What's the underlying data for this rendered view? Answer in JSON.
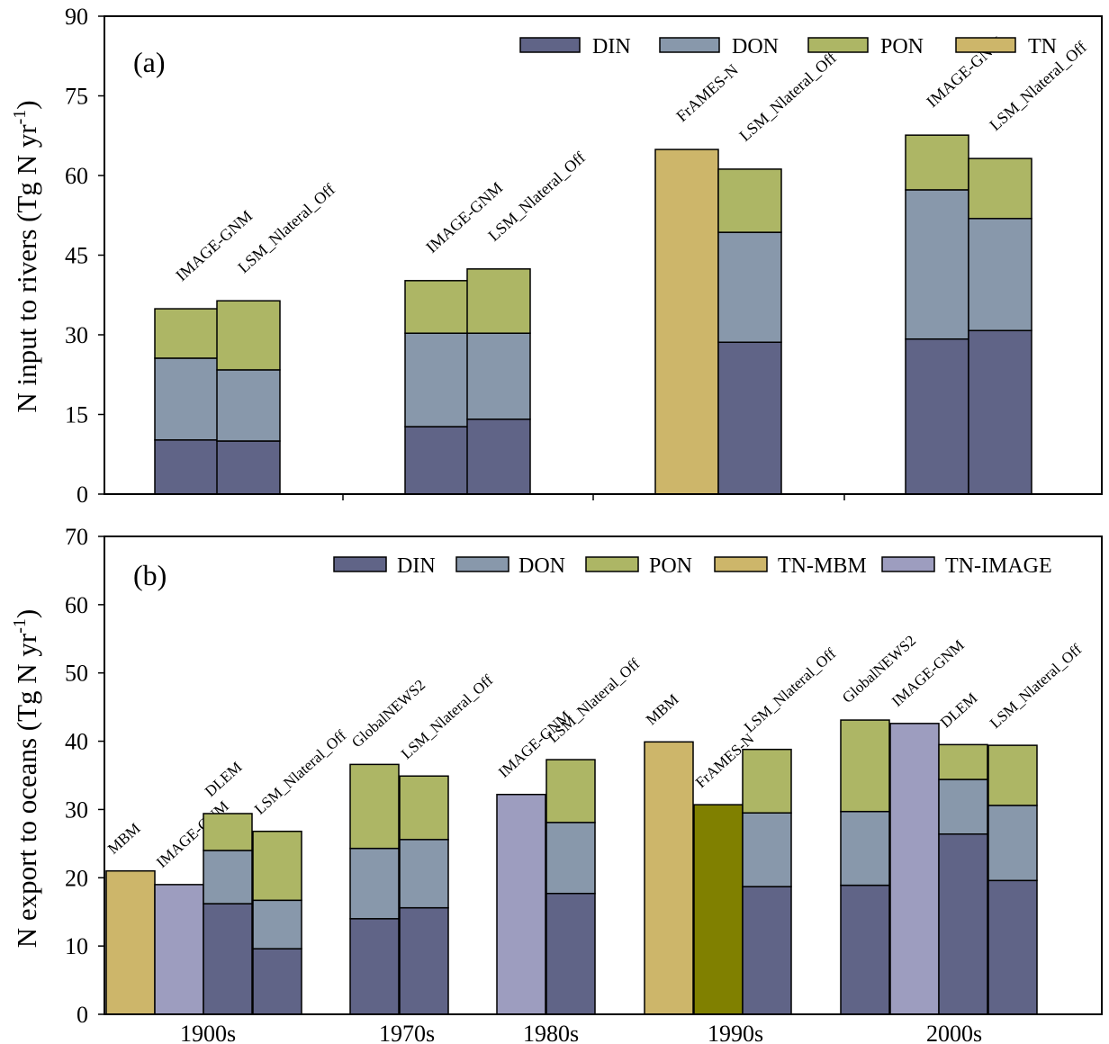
{
  "colors": {
    "DIN": "#606487",
    "DON": "#8898ab",
    "PON": "#adb665",
    "TN": "#cdb66a",
    "TN-MBM": "#cdb66a",
    "TN-IMAGE": "#9d9dbf",
    "TN-FrAMES": "#808000"
  },
  "chart_data": [
    {
      "type": "bar",
      "stacked": true,
      "panel_label": "(a)",
      "ylabel": "N input to rivers (Tg N yr-1)",
      "ylim": [
        0,
        90
      ],
      "yticks": [
        0,
        15,
        30,
        45,
        60,
        75,
        90
      ],
      "legend": [
        "DIN",
        "DON",
        "PON",
        "TN"
      ],
      "legend_position": "top-right",
      "categories": [
        "1900s",
        "1970s",
        "1990s",
        "2000s"
      ],
      "show_category_labels": false,
      "bars": [
        {
          "category": "1900s",
          "model": "IMAGE-GNM",
          "segments": {
            "DIN": 10.2,
            "DON": 15.4,
            "PON": 9.3
          }
        },
        {
          "category": "1900s",
          "model": "LSM_Nlateral_Off",
          "segments": {
            "DIN": 10.0,
            "DON": 13.4,
            "PON": 13.0
          }
        },
        {
          "category": "1970s",
          "model": "IMAGE-GNM",
          "segments": {
            "DIN": 12.7,
            "DON": 17.6,
            "PON": 9.9
          }
        },
        {
          "category": "1970s",
          "model": "LSM_Nlateral_Off",
          "segments": {
            "DIN": 14.1,
            "DON": 16.2,
            "PON": 12.1
          }
        },
        {
          "category": "1990s",
          "model": "FrAMES-N",
          "segments": {
            "TN": 64.9
          }
        },
        {
          "category": "1990s",
          "model": "LSM_Nlateral_Off",
          "segments": {
            "DIN": 28.6,
            "DON": 20.7,
            "PON": 11.9
          }
        },
        {
          "category": "2000s",
          "model": "IMAGE-GNM",
          "segments": {
            "DIN": 29.2,
            "DON": 28.1,
            "PON": 10.3
          }
        },
        {
          "category": "2000s",
          "model": "LSM_Nlateral_Off",
          "segments": {
            "DIN": 30.8,
            "DON": 21.1,
            "PON": 11.3
          }
        }
      ]
    },
    {
      "type": "bar",
      "stacked": true,
      "panel_label": "(b)",
      "ylabel": "N export to oceans (Tg N yr-1)",
      "ylim": [
        0,
        70
      ],
      "yticks": [
        0,
        10,
        20,
        30,
        40,
        50,
        60,
        70
      ],
      "legend": [
        "DIN",
        "DON",
        "PON",
        "TN-MBM",
        "TN-IMAGE"
      ],
      "legend_position": "top-right",
      "categories": [
        "1900s",
        "1970s",
        "1980s",
        "1990s",
        "2000s"
      ],
      "show_category_labels": true,
      "bars": [
        {
          "category": "1900s",
          "model": "MBM",
          "segments": {
            "TN-MBM": 21.0
          }
        },
        {
          "category": "1900s",
          "model": "IMAGE-GNM",
          "segments": {
            "TN-IMAGE": 19.0
          }
        },
        {
          "category": "1900s",
          "model": "DLEM",
          "segments": {
            "DIN": 16.2,
            "DON": 7.8,
            "PON": 5.4
          }
        },
        {
          "category": "1900s",
          "model": "LSM_Nlateral_Off",
          "segments": {
            "DIN": 9.6,
            "DON": 7.1,
            "PON": 10.1
          }
        },
        {
          "category": "1970s",
          "model": "GlobalNEWS2",
          "segments": {
            "DIN": 14.0,
            "DON": 10.3,
            "PON": 12.3
          }
        },
        {
          "category": "1970s",
          "model": "LSM_Nlateral_Off",
          "segments": {
            "DIN": 15.6,
            "DON": 10.0,
            "PON": 9.3
          }
        },
        {
          "category": "1980s",
          "model": "IMAGE-GNM",
          "segments": {
            "TN-IMAGE": 32.2
          }
        },
        {
          "category": "1980s",
          "model": "LSM_Nlateral_Off",
          "segments": {
            "DIN": 17.7,
            "DON": 10.4,
            "PON": 9.2
          }
        },
        {
          "category": "1990s",
          "model": "MBM",
          "segments": {
            "TN-MBM": 39.9
          }
        },
        {
          "category": "1990s",
          "model": "FrAMES-N",
          "segments": {
            "TN-FrAMES": 30.7
          }
        },
        {
          "category": "1990s",
          "model": "LSM_Nlateral_Off",
          "segments": {
            "DIN": 18.7,
            "DON": 10.8,
            "PON": 9.3
          }
        },
        {
          "category": "2000s",
          "model": "GlobalNEWS2",
          "segments": {
            "DIN": 18.9,
            "DON": 10.8,
            "PON": 13.4
          }
        },
        {
          "category": "2000s",
          "model": "IMAGE-GNM",
          "segments": {
            "TN-IMAGE": 42.6
          }
        },
        {
          "category": "2000s",
          "model": "DLEM",
          "segments": {
            "DIN": 26.4,
            "DON": 8.0,
            "PON": 5.1
          }
        },
        {
          "category": "2000s",
          "model": "LSM_Nlateral_Off",
          "segments": {
            "DIN": 19.6,
            "DON": 11.0,
            "PON": 8.8
          }
        }
      ]
    }
  ]
}
